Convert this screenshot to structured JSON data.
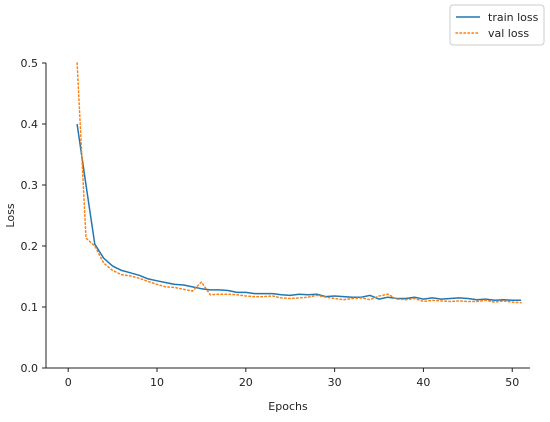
{
  "chart_data": {
    "type": "line",
    "title": "",
    "xlabel": "Epochs",
    "ylabel": "Loss",
    "xlim": [
      -2.5,
      52
    ],
    "ylim": [
      0.0,
      0.5
    ],
    "xticks": [
      0,
      10,
      20,
      30,
      40,
      50
    ],
    "yticks": [
      0.0,
      0.1,
      0.2,
      0.3,
      0.4,
      0.5
    ],
    "ytick_labels": [
      "0.0",
      "0.1",
      "0.2",
      "0.3",
      "0.4",
      "0.5"
    ],
    "grid": false,
    "legend": "top-right",
    "x": [
      1,
      2,
      3,
      4,
      5,
      6,
      7,
      8,
      9,
      10,
      11,
      12,
      13,
      14,
      15,
      16,
      17,
      18,
      19,
      20,
      21,
      22,
      23,
      24,
      25,
      26,
      27,
      28,
      29,
      30,
      31,
      32,
      33,
      34,
      35,
      36,
      37,
      38,
      39,
      40,
      41,
      42,
      43,
      44,
      45,
      46,
      47,
      48,
      49,
      50,
      51
    ],
    "series": [
      {
        "name": "train loss",
        "color": "#1f77b4",
        "style": "solid",
        "values": [
          0.4,
          0.3,
          0.203,
          0.18,
          0.167,
          0.16,
          0.156,
          0.152,
          0.146,
          0.143,
          0.14,
          0.137,
          0.136,
          0.133,
          0.13,
          0.128,
          0.128,
          0.127,
          0.124,
          0.124,
          0.122,
          0.122,
          0.122,
          0.12,
          0.119,
          0.121,
          0.12,
          0.121,
          0.117,
          0.118,
          0.117,
          0.116,
          0.116,
          0.119,
          0.113,
          0.116,
          0.114,
          0.114,
          0.116,
          0.113,
          0.115,
          0.113,
          0.114,
          0.115,
          0.114,
          0.112,
          0.113,
          0.111,
          0.112,
          0.111,
          0.111
        ]
      },
      {
        "name": "val loss",
        "color": "#ff7f0e",
        "style": "dotted",
        "values": [
          0.5,
          0.213,
          0.2,
          0.172,
          0.16,
          0.153,
          0.151,
          0.147,
          0.142,
          0.137,
          0.133,
          0.132,
          0.129,
          0.126,
          0.141,
          0.12,
          0.121,
          0.121,
          0.12,
          0.118,
          0.117,
          0.117,
          0.118,
          0.115,
          0.114,
          0.115,
          0.116,
          0.119,
          0.116,
          0.114,
          0.112,
          0.114,
          0.115,
          0.112,
          0.118,
          0.121,
          0.113,
          0.112,
          0.114,
          0.109,
          0.111,
          0.11,
          0.109,
          0.11,
          0.109,
          0.109,
          0.111,
          0.108,
          0.11,
          0.108,
          0.107
        ]
      }
    ]
  }
}
